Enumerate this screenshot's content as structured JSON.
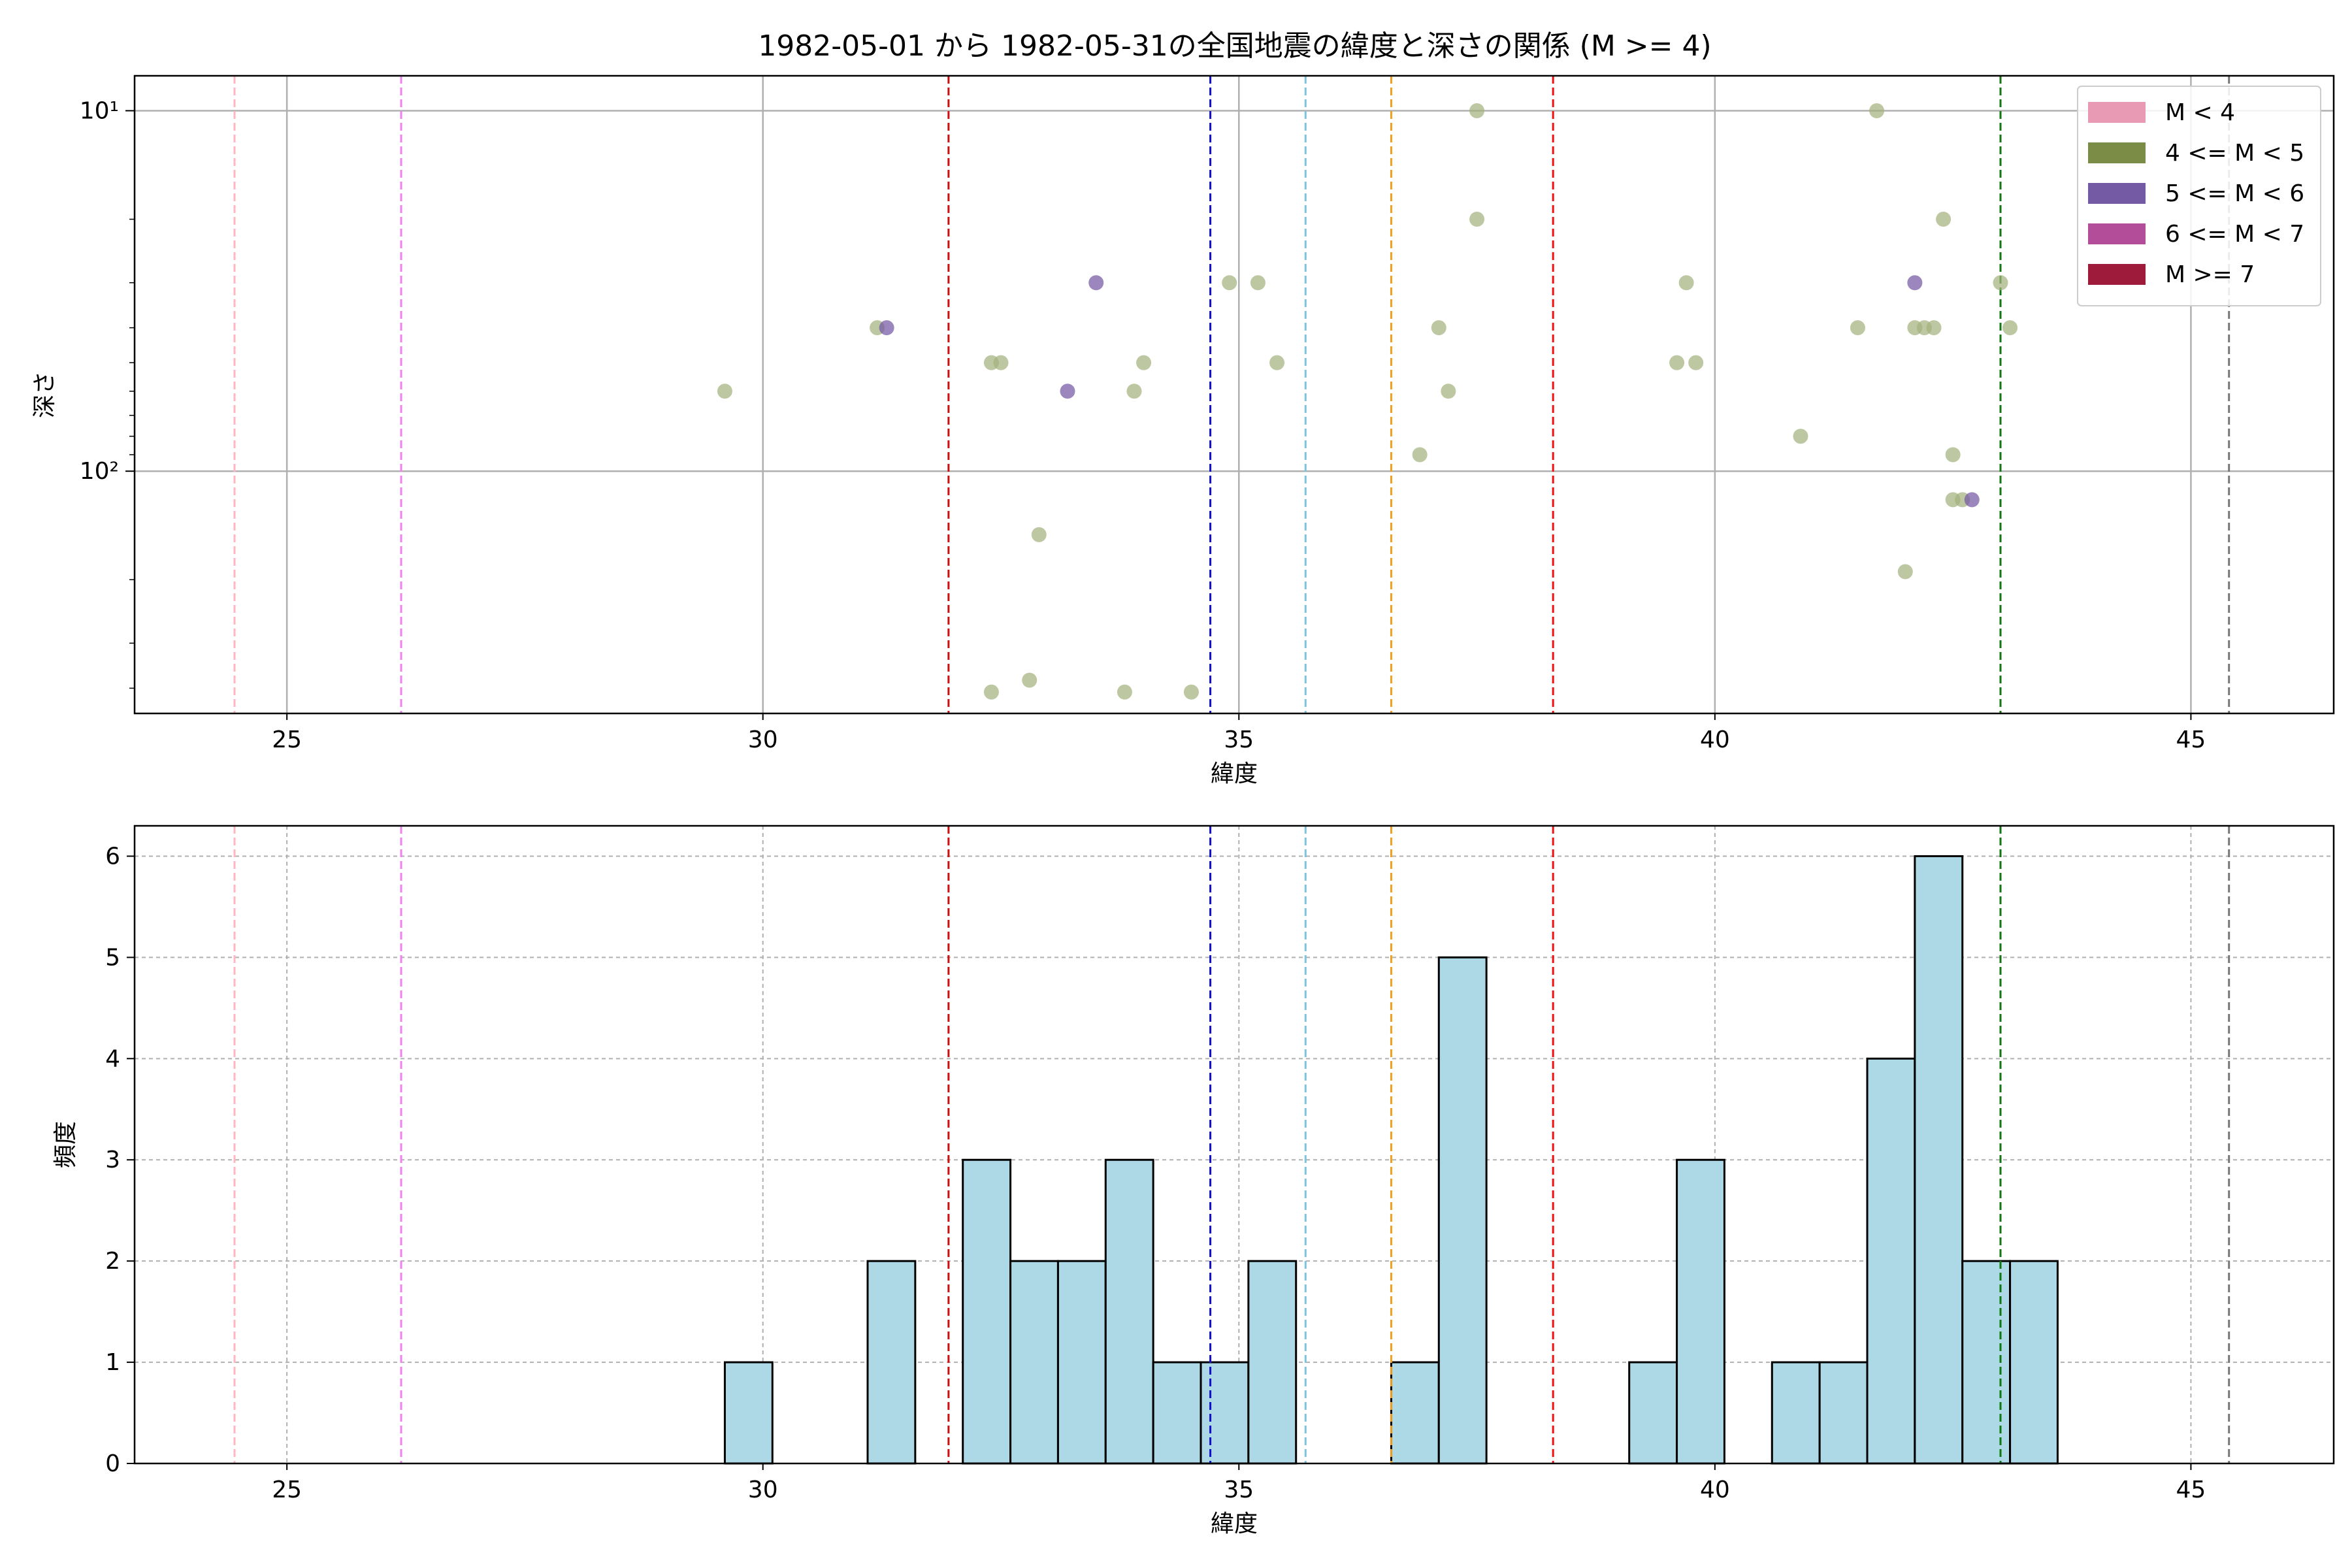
{
  "figure": {
    "title": "1982-05-01 から 1982-05-31の全国地震の緯度と深さの関係 (M >= 4)"
  },
  "chart_data": [
    {
      "type": "scatter",
      "xlabel": "緯度",
      "ylabel": "深さ",
      "xlim": [
        23.4,
        46.5
      ],
      "ylim": [
        470,
        8
      ],
      "yscale": "log",
      "y_inverted": true,
      "xticks": [
        25,
        30,
        35,
        40,
        45
      ],
      "yticks": [
        10,
        100
      ],
      "ytick_labels": [
        "10¹",
        "10²"
      ],
      "grid": true,
      "legend": {
        "placement": "top-right",
        "entries": [
          {
            "label": "M < 4",
            "color": "#e899b4"
          },
          {
            "label": "4 <= M < 5",
            "color": "#7b8c46"
          },
          {
            "label": "5 <= M < 6",
            "color": "#7459a4"
          },
          {
            "label": "6 <= M < 7",
            "color": "#b34d99"
          },
          {
            "label": "M >= 7",
            "color": "#9e1b3c"
          }
        ]
      },
      "series": [
        {
          "class": "4 <= M < 5",
          "color": "#a3b27d",
          "points": [
            [
              29.6,
              60
            ],
            [
              31.2,
              40
            ],
            [
              32.4,
              50
            ],
            [
              32.5,
              50
            ],
            [
              32.4,
              410
            ],
            [
              32.8,
              380
            ],
            [
              32.9,
              150
            ],
            [
              33.8,
              410
            ],
            [
              33.9,
              60
            ],
            [
              34.0,
              50
            ],
            [
              34.5,
              410
            ],
            [
              34.9,
              30
            ],
            [
              35.2,
              30
            ],
            [
              35.4,
              50
            ],
            [
              36.9,
              90
            ],
            [
              37.1,
              40
            ],
            [
              37.2,
              60
            ],
            [
              37.5,
              10
            ],
            [
              37.5,
              20
            ],
            [
              39.6,
              50
            ],
            [
              39.7,
              30
            ],
            [
              39.8,
              50
            ],
            [
              40.9,
              80
            ],
            [
              41.5,
              40
            ],
            [
              41.7,
              10
            ],
            [
              42.0,
              190
            ],
            [
              42.1,
              40
            ],
            [
              42.2,
              40
            ],
            [
              42.3,
              40
            ],
            [
              42.4,
              20
            ],
            [
              42.5,
              90
            ],
            [
              42.5,
              120
            ],
            [
              42.6,
              120
            ],
            [
              43.0,
              30
            ],
            [
              43.1,
              40
            ]
          ]
        },
        {
          "class": "5 <= M < 6",
          "color": "#7459a4",
          "points": [
            [
              31.3,
              40
            ],
            [
              33.2,
              60
            ],
            [
              33.5,
              30
            ],
            [
              42.1,
              30
            ],
            [
              42.7,
              120
            ]
          ]
        }
      ],
      "vlines": [
        {
          "x": 24.45,
          "color": "#ffb6c1"
        },
        {
          "x": 26.2,
          "color": "#ee82ee"
        },
        {
          "x": 31.95,
          "color": "#cc1111"
        },
        {
          "x": 34.7,
          "color": "#1111cc"
        },
        {
          "x": 35.7,
          "color": "#7fc4dc"
        },
        {
          "x": 36.6,
          "color": "#f0a020"
        },
        {
          "x": 38.3,
          "color": "#ee1111"
        },
        {
          "x": 43.0,
          "color": "#117711"
        },
        {
          "x": 45.4,
          "color": "#777777"
        }
      ]
    },
    {
      "type": "bar",
      "xlabel": "緯度",
      "ylabel": "頻度",
      "xlim": [
        23.4,
        46.5
      ],
      "ylim": [
        0,
        6.3
      ],
      "xticks": [
        25,
        30,
        35,
        40,
        45
      ],
      "yticks": [
        0,
        1,
        2,
        3,
        4,
        5,
        6
      ],
      "grid": true,
      "bar_color": "#add8e6",
      "bins": [
        {
          "start": 29.6,
          "end": 30.1,
          "value": 1
        },
        {
          "start": 31.1,
          "end": 31.6,
          "value": 2
        },
        {
          "start": 32.1,
          "end": 32.6,
          "value": 3
        },
        {
          "start": 32.6,
          "end": 33.1,
          "value": 2
        },
        {
          "start": 33.1,
          "end": 33.6,
          "value": 2
        },
        {
          "start": 33.6,
          "end": 34.1,
          "value": 3
        },
        {
          "start": 34.1,
          "end": 34.6,
          "value": 1
        },
        {
          "start": 34.6,
          "end": 35.1,
          "value": 1
        },
        {
          "start": 35.1,
          "end": 35.6,
          "value": 2
        },
        {
          "start": 36.6,
          "end": 37.1,
          "value": 1
        },
        {
          "start": 37.1,
          "end": 37.6,
          "value": 5
        },
        {
          "start": 39.1,
          "end": 39.6,
          "value": 1
        },
        {
          "start": 39.6,
          "end": 40.1,
          "value": 3
        },
        {
          "start": 40.6,
          "end": 41.1,
          "value": 1
        },
        {
          "start": 41.1,
          "end": 41.6,
          "value": 1
        },
        {
          "start": 41.6,
          "end": 42.1,
          "value": 4
        },
        {
          "start": 42.1,
          "end": 42.6,
          "value": 6
        },
        {
          "start": 42.6,
          "end": 43.1,
          "value": 2
        },
        {
          "start": 43.1,
          "end": 43.6,
          "value": 2
        }
      ],
      "vlines": [
        {
          "x": 24.45,
          "color": "#ffb6c1"
        },
        {
          "x": 26.2,
          "color": "#ee82ee"
        },
        {
          "x": 31.95,
          "color": "#cc1111"
        },
        {
          "x": 34.7,
          "color": "#1111cc"
        },
        {
          "x": 35.7,
          "color": "#7fc4dc"
        },
        {
          "x": 36.6,
          "color": "#f0a020"
        },
        {
          "x": 38.3,
          "color": "#ee1111"
        },
        {
          "x": 43.0,
          "color": "#117711"
        },
        {
          "x": 45.4,
          "color": "#777777"
        }
      ]
    }
  ]
}
